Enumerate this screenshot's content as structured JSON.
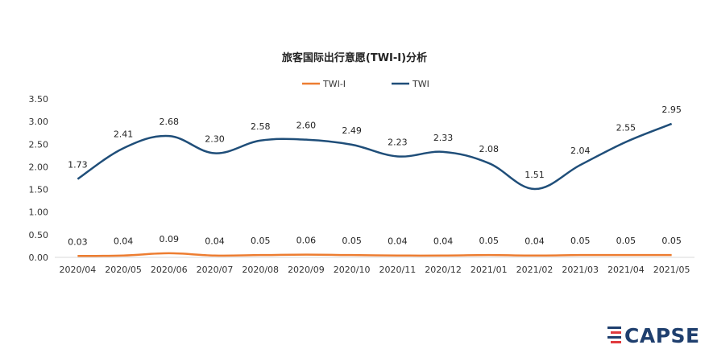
{
  "chart_data": {
    "type": "line",
    "title": "旅客国际出行意愿(TWI-I)分析",
    "categories": [
      "2020/04",
      "2020/05",
      "2020/06",
      "2020/07",
      "2020/08",
      "2020/09",
      "2020/10",
      "2020/11",
      "2020/12",
      "2021/01",
      "2021/02",
      "2021/03",
      "2021/04",
      "2021/05"
    ],
    "series": [
      {
        "name": "TWI-I",
        "color": "#ed7d31",
        "values": [
          0.03,
          0.04,
          0.09,
          0.04,
          0.05,
          0.06,
          0.05,
          0.04,
          0.04,
          0.05,
          0.04,
          0.05,
          0.05,
          0.05
        ],
        "labels": [
          "0.03",
          "0.04",
          "0.09",
          "0.04",
          "0.05",
          "0.06",
          "0.05",
          "0.04",
          "0.04",
          "0.05",
          "0.04",
          "0.05",
          "0.05",
          "0.05"
        ]
      },
      {
        "name": "TWI",
        "color": "#1f4e79",
        "values": [
          1.73,
          2.41,
          2.68,
          2.3,
          2.58,
          2.6,
          2.49,
          2.23,
          2.33,
          2.08,
          1.51,
          2.04,
          2.55,
          2.95
        ],
        "labels": [
          "1.73",
          "2.41",
          "2.68",
          "2.30",
          "2.58",
          "2.60",
          "2.49",
          "2.23",
          "2.33",
          "2.08",
          "1.51",
          "2.04",
          "2.55",
          "2.95"
        ]
      }
    ],
    "ylim": [
      0,
      3.5
    ],
    "yticks": [
      "0.00",
      "0.50",
      "1.00",
      "1.50",
      "2.00",
      "2.50",
      "3.00",
      "3.50"
    ],
    "grid": false,
    "legend_position": "top-center",
    "smooth": true
  },
  "logo": {
    "text": "CAPSE",
    "icon": "capse-logo-icon"
  }
}
